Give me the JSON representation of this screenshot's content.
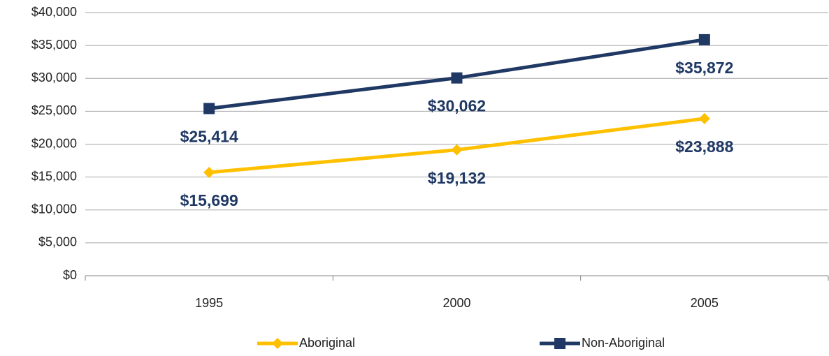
{
  "chart_data": {
    "type": "line",
    "categories": [
      "1995",
      "2000",
      "2005"
    ],
    "series": [
      {
        "name": "Aboriginal",
        "color": "#FFC000",
        "marker": "diamond",
        "values": [
          15699,
          19132,
          23888
        ],
        "value_labels": [
          "$15,699",
          "$19,132",
          "$23,888"
        ]
      },
      {
        "name": "Non-Aboriginal",
        "color": "#1F3864",
        "marker": "square",
        "values": [
          25414,
          30062,
          35872
        ],
        "value_labels": [
          "$25,414",
          "$30,062",
          "$35,872"
        ]
      }
    ],
    "ylim": [
      0,
      40000
    ],
    "yticks": [
      {
        "value": 0,
        "label": "$0"
      },
      {
        "value": 5000,
        "label": "$5,000"
      },
      {
        "value": 10000,
        "label": "$10,000"
      },
      {
        "value": 15000,
        "label": "$15,000"
      },
      {
        "value": 20000,
        "label": "$20,000"
      },
      {
        "value": 25000,
        "label": "$25,000"
      },
      {
        "value": 30000,
        "label": "$30,000"
      },
      {
        "value": 35000,
        "label": "$35,000"
      },
      {
        "value": 40000,
        "label": "$40,000"
      }
    ],
    "grid": true,
    "legend": "bottom"
  }
}
